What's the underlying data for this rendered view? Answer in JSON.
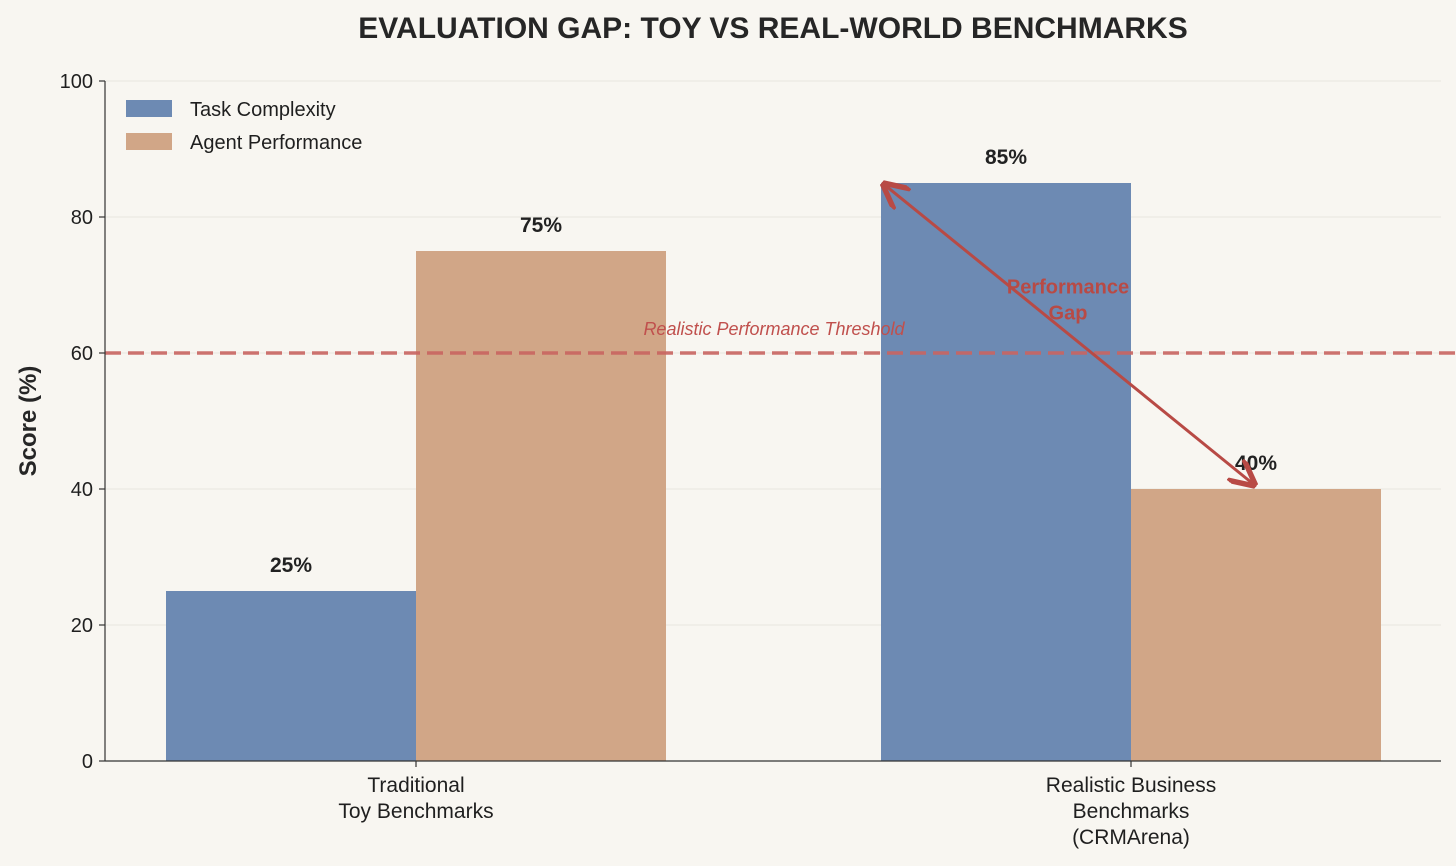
{
  "chart_data": {
    "type": "bar",
    "title": "EVALUATION GAP: TOY VS REAL-WORLD BENCHMARKS",
    "xlabel": "",
    "ylabel": "Score (%)",
    "ylim": [
      0,
      100
    ],
    "yticks": [
      "0",
      "20",
      "40",
      "60",
      "80",
      "100"
    ],
    "categories": [
      [
        "Traditional",
        "Toy Benchmarks"
      ],
      [
        "Realistic Business",
        "Benchmarks",
        "(CRMArena)"
      ]
    ],
    "series": [
      {
        "name": "Task Complexity",
        "color": "#6d8ab3",
        "values": [
          25,
          85
        ],
        "labels": [
          "25%",
          "85%"
        ]
      },
      {
        "name": "Agent Performance",
        "color": "#d1a687",
        "values": [
          75,
          40
        ],
        "labels": [
          "75%",
          "40%"
        ]
      }
    ],
    "threshold": {
      "value": 60,
      "label": "Realistic Performance Threshold",
      "color": "#c96561"
    },
    "annotation": {
      "text_lines": [
        "Performance",
        "Gap"
      ],
      "from_value": 85,
      "to_value": 40,
      "color": "#b84a45"
    },
    "grid": true,
    "legend_position": "top-left"
  }
}
